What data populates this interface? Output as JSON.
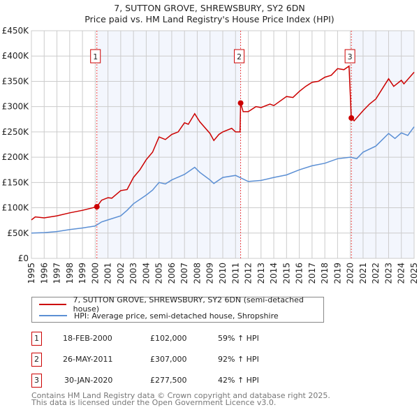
{
  "chart_data": {
    "type": "line",
    "title": "7, SUTTON GROVE, SHREWSBURY, SY2 6DN",
    "subtitle": "Price paid vs. HM Land Registry's House Price Index (HPI)",
    "xlim": [
      1995,
      2025
    ],
    "ylim": [
      0,
      450000
    ],
    "y_ticks": [
      0,
      50000,
      100000,
      150000,
      200000,
      250000,
      300000,
      350000,
      400000,
      450000
    ],
    "y_tick_labels": [
      "£0",
      "£50K",
      "£100K",
      "£150K",
      "£200K",
      "£250K",
      "£300K",
      "£350K",
      "£400K",
      "£450K"
    ],
    "x_tick_labels": [
      "1995",
      "1996",
      "1997",
      "1998",
      "1999",
      "2000",
      "2001",
      "2002",
      "2003",
      "2004",
      "2005",
      "2006",
      "2007",
      "2008",
      "2009",
      "2010",
      "2011",
      "2012",
      "2013",
      "2014",
      "2015",
      "2016",
      "2017",
      "2018",
      "2019",
      "2020",
      "2021",
      "2022",
      "2023",
      "2024",
      "2025"
    ],
    "grid": true,
    "series": [
      {
        "name": "7, SUTTON GROVE, SHREWSBURY, SY2 6DN (semi-detached house)",
        "color": "#cc0000",
        "x": [
          1995,
          1995.3,
          1996,
          1997,
          1998,
          1999,
          2000.13,
          2000.5,
          2001,
          2001.3,
          2002,
          2002.5,
          2003,
          2003.5,
          2004,
          2004.5,
          2005,
          2005.5,
          2006,
          2006.5,
          2007,
          2007.3,
          2007.8,
          2008.2,
          2009,
          2009.3,
          2009.7,
          2010,
          2010.7,
          2011,
          2011.35,
          2011.4,
          2011.6,
          2012,
          2012.6,
          2013,
          2013.7,
          2014,
          2015,
          2015.5,
          2016,
          2016.5,
          2017,
          2017.5,
          2018,
          2018.5,
          2019,
          2019.5,
          2019.9,
          2020.08,
          2020.3,
          2021,
          2021.5,
          2022,
          2022.5,
          2023,
          2023.4,
          2024,
          2024.2,
          2025
        ],
        "y": [
          76000,
          82000,
          80000,
          84000,
          90000,
          95000,
          102000,
          115000,
          120000,
          119000,
          134000,
          136000,
          160000,
          175000,
          195000,
          210000,
          240000,
          235000,
          245000,
          250000,
          268000,
          265000,
          286000,
          270000,
          247000,
          233000,
          245000,
          250000,
          257000,
          250000,
          250000,
          307000,
          290000,
          290000,
          300000,
          298000,
          305000,
          302000,
          320000,
          318000,
          330000,
          340000,
          348000,
          350000,
          358000,
          362000,
          375000,
          373000,
          380000,
          277500,
          272000,
          292000,
          305000,
          315000,
          335000,
          355000,
          340000,
          352000,
          345000,
          368000
        ]
      },
      {
        "name": "HPI: Average price, semi-detached house, Shropshire",
        "color": "#5b8fd4",
        "x": [
          1995,
          1996,
          1997,
          1998,
          1999,
          2000,
          2000.5,
          2001,
          2002,
          2002.5,
          2003,
          2004,
          2004.5,
          2005,
          2005.5,
          2006,
          2007,
          2007.8,
          2008.2,
          2009,
          2009.3,
          2010,
          2011,
          2012,
          2013,
          2014,
          2015,
          2016,
          2017,
          2018,
          2019,
          2020,
          2020.5,
          2021,
          2022,
          2023,
          2023.5,
          2024,
          2024.5,
          2025
        ],
        "y": [
          50000,
          51000,
          53000,
          57000,
          60000,
          64000,
          72000,
          76000,
          84000,
          95000,
          108000,
          125000,
          135000,
          150000,
          147000,
          155000,
          166000,
          180000,
          170000,
          155000,
          148000,
          160000,
          164000,
          152000,
          154000,
          160000,
          165000,
          175000,
          183000,
          188000,
          197000,
          200000,
          197000,
          210000,
          222000,
          247000,
          237000,
          248000,
          243000,
          260000
        ]
      }
    ],
    "sales": [
      {
        "label": "1",
        "x": 2000.13,
        "y": 102000,
        "date": "18-FEB-2000",
        "price": "£102,000",
        "hpi": "59% ↑ HPI"
      },
      {
        "label": "2",
        "x": 2011.4,
        "y": 307000,
        "date": "26-MAY-2011",
        "price": "£307,000",
        "hpi": "92% ↑ HPI"
      },
      {
        "label": "3",
        "x": 2020.08,
        "y": 277500,
        "date": "30-JAN-2020",
        "price": "£277,500",
        "hpi": "42% ↑ HPI"
      }
    ],
    "shaded_ranges": [
      [
        2000.13,
        2011.4
      ],
      [
        2020.08,
        2025
      ]
    ]
  },
  "footer": [
    "Contains HM Land Registry data © Crown copyright and database right 2025.",
    "This data is licensed under the Open Government Licence v3.0."
  ]
}
